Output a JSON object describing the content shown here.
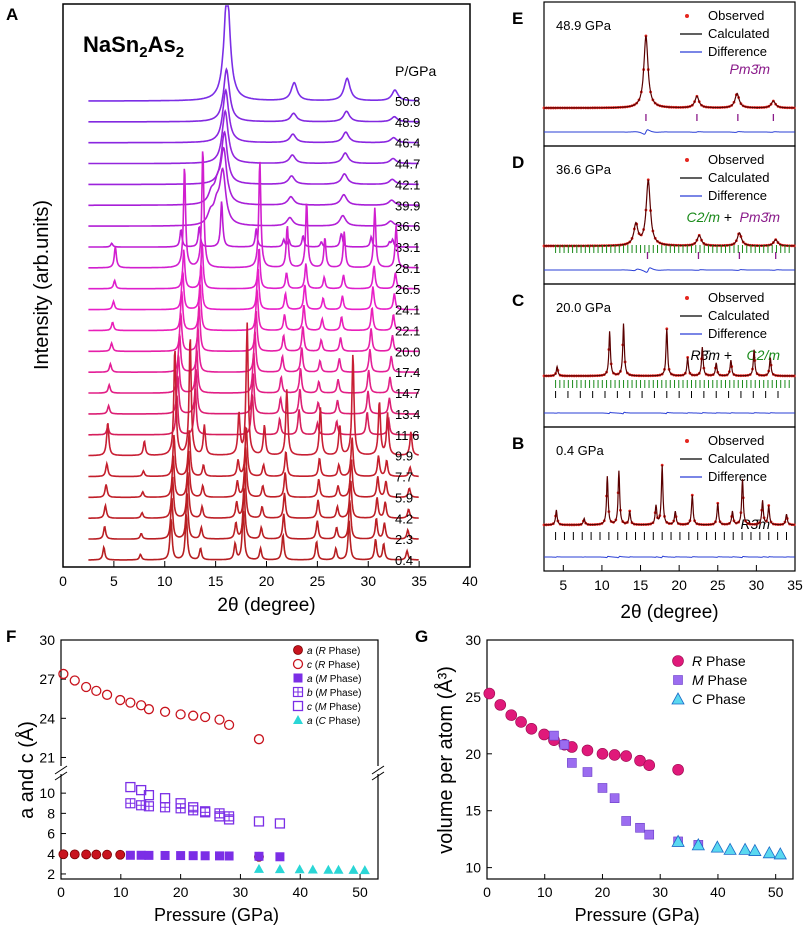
{
  "chart_data": [
    {
      "panel": "A",
      "type": "line",
      "title": "NaSn2As2",
      "xlabel": "2θ (degree)",
      "ylabel": "Intensity (arb.units)",
      "xlim": [
        0,
        40
      ],
      "xticks": [
        0,
        5,
        10,
        15,
        20,
        25,
        30,
        35,
        40
      ],
      "x_range": [
        2.5,
        35
      ],
      "legend_title": "P/GPa",
      "pressures": [
        "50.8",
        "48.9",
        "46.4",
        "44.7",
        "42.1",
        "39.9",
        "36.6",
        "33.1",
        "28.1",
        "26.5",
        "24.1",
        "22.1",
        "20.0",
        "17.4",
        "14.7",
        "13.4",
        "11.6",
        "9.9",
        "7.7",
        "5.9",
        "4.2",
        "2.3",
        "0.4"
      ],
      "colors": [
        "#7b2ee6",
        "#8229e0",
        "#8a26e0",
        "#9326dd",
        "#9c22dc",
        "#a81fd8",
        "#b21fd6",
        "#be1cd4",
        "#d11fcf",
        "#de1fcc",
        "#e81fc8",
        "#e91fb9",
        "#e61fa8",
        "#e41f98",
        "#e21f86",
        "#dc1f74",
        "#d61f5c",
        "#c81f34",
        "#c41f2c",
        "#c01f28",
        "#bd1f26",
        "#ba1f24",
        "#b71f22"
      ],
      "phases": {
        "R": [
          [
            4.0,
            0.28
          ],
          [
            7.6,
            0.12
          ],
          [
            10.6,
            0.9
          ],
          [
            12.1,
            1.0
          ],
          [
            13.5,
            0.25
          ],
          [
            16.9,
            0.35
          ],
          [
            17.7,
            1.1
          ],
          [
            19.4,
            0.25
          ],
          [
            21.6,
            0.55
          ],
          [
            24.9,
            0.4
          ],
          [
            26.8,
            0.25
          ],
          [
            28.1,
            0.85
          ],
          [
            30.7,
            0.45
          ],
          [
            31.5,
            0.35
          ],
          [
            33.8,
            0.2
          ]
        ],
        "M": [
          [
            4.4,
            0.18
          ],
          [
            11.2,
            0.85
          ],
          [
            13.0,
            1.0
          ],
          [
            18.6,
            0.9
          ],
          [
            21.3,
            0.35
          ],
          [
            23.2,
            0.55
          ],
          [
            25.0,
            0.25
          ],
          [
            26.9,
            0.3
          ],
          [
            29.9,
            0.5
          ],
          [
            32.0,
            0.35
          ]
        ],
        "C": [
          [
            15.8,
            1.25
          ],
          [
            22.4,
            0.2
          ],
          [
            27.6,
            0.25
          ],
          [
            32.3,
            0.12
          ]
        ]
      }
    },
    {
      "panel": "E",
      "type": "line",
      "label": "48.9 GPa",
      "legend": [
        "Observed",
        "Calculated",
        "Difference"
      ],
      "phase_label": "Pm3̄m",
      "ticks": {
        "purple": [
          15.7,
          22.3,
          27.6,
          32.2
        ]
      }
    },
    {
      "panel": "D",
      "type": "line",
      "label": "36.6 GPa",
      "legend": [
        "Observed",
        "Calculated",
        "Difference"
      ],
      "phase_labels": [
        "C2/m",
        "+",
        "Pm3̄m"
      ],
      "ticks": {
        "purple": [
          15.9,
          22.5,
          27.8,
          32.5
        ]
      }
    },
    {
      "panel": "C",
      "type": "line",
      "label": "20.0 GPa",
      "legend": [
        "Observed",
        "Calculated",
        "Difference"
      ],
      "phase_labels": [
        "R3̄m",
        "+",
        "C2/m"
      ]
    },
    {
      "panel": "B",
      "type": "line",
      "label": "0.4 GPa",
      "legend": [
        "Observed",
        "Calculated",
        "Difference"
      ],
      "phase_label": "R3̄m",
      "xlabel": "2θ (degree)",
      "xticks": [
        5,
        10,
        15,
        20,
        25,
        30,
        35
      ],
      "xlim": [
        2.5,
        35
      ]
    },
    {
      "panel": "F",
      "type": "scatter",
      "xlabel": "Pressure (GPa)",
      "ylabel": "a and c (Å)",
      "xlim": [
        0,
        53
      ],
      "xticks": [
        0,
        10,
        20,
        30,
        40,
        50
      ],
      "upper_yticks": [
        21,
        24,
        27,
        30
      ],
      "lower_yticks": [
        2,
        4,
        6,
        8,
        10
      ],
      "legend": [
        "a (R Phase)",
        "c (R Phase)",
        "a (M Phase)",
        "b (M Phase)",
        "c (M Phase)",
        "a (C Phase)"
      ],
      "series": [
        {
          "name": "a (R Phase)",
          "x": [
            0.4,
            2.3,
            4.2,
            5.9,
            7.7,
            9.9,
            33.1
          ],
          "y": [
            3.95,
            3.94,
            3.93,
            3.92,
            3.91,
            3.9,
            3.7
          ]
        },
        {
          "name": "c (R Phase)",
          "x": [
            0.4,
            2.3,
            4.2,
            5.9,
            7.7,
            9.9,
            11.6,
            13.4,
            14.7,
            17.4,
            20.0,
            22.1,
            24.1,
            26.5,
            28.1,
            33.1
          ],
          "y": [
            27.4,
            26.9,
            26.4,
            26.1,
            25.8,
            25.4,
            25.2,
            25.0,
            24.7,
            24.5,
            24.3,
            24.2,
            24.1,
            23.9,
            23.5,
            22.4
          ]
        },
        {
          "name": "a (M Phase)",
          "x": [
            11.6,
            13.4,
            14.7,
            17.4,
            20.0,
            22.1,
            24.1,
            26.5,
            28.1,
            33.1,
            36.6
          ],
          "y": [
            3.85,
            3.85,
            3.84,
            3.83,
            3.82,
            3.81,
            3.8,
            3.79,
            3.78,
            3.75,
            3.7
          ]
        },
        {
          "name": "b (M Phase)",
          "x": [
            11.6,
            13.4,
            14.7,
            17.4,
            20.0,
            22.1,
            24.1,
            26.5,
            28.1
          ],
          "y": [
            9.0,
            8.8,
            8.7,
            8.6,
            8.5,
            8.3,
            8.1,
            8.0,
            7.7
          ]
        },
        {
          "name": "c (M Phase)",
          "x": [
            11.6,
            13.4,
            14.7,
            17.4,
            20.0,
            22.1,
            24.1,
            26.5,
            28.1,
            33.1,
            36.6
          ],
          "y": [
            10.6,
            10.3,
            9.8,
            9.5,
            9.0,
            8.6,
            8.2,
            7.7,
            7.4,
            7.2,
            7.0
          ]
        },
        {
          "name": "a (C Phase)",
          "x": [
            33.1,
            36.6,
            39.9,
            42.1,
            44.7,
            46.4,
            48.9,
            50.8
          ],
          "y": [
            2.5,
            2.48,
            2.46,
            2.44,
            2.42,
            2.41,
            2.4,
            2.38
          ]
        }
      ]
    },
    {
      "panel": "G",
      "type": "scatter",
      "xlabel": "Pressure (GPa)",
      "ylabel": "volume per atom (Å³)",
      "xlim": [
        0,
        53
      ],
      "ylim": [
        9,
        30
      ],
      "xticks": [
        0,
        10,
        20,
        30,
        40,
        50
      ],
      "yticks": [
        10,
        15,
        20,
        25,
        30
      ],
      "legend": [
        "R Phase",
        "M Phase",
        "C Phase"
      ],
      "series": [
        {
          "name": "R Phase",
          "x": [
            0.4,
            2.3,
            4.2,
            5.9,
            7.7,
            9.9,
            11.6,
            13.4,
            14.7,
            17.4,
            20.0,
            22.1,
            24.1,
            26.5,
            28.1,
            33.1
          ],
          "y": [
            25.3,
            24.3,
            23.4,
            22.8,
            22.2,
            21.7,
            21.2,
            20.8,
            20.6,
            20.3,
            20.0,
            19.9,
            19.8,
            19.4,
            19.0,
            18.6
          ]
        },
        {
          "name": "M Phase",
          "x": [
            11.6,
            13.4,
            14.7,
            17.4,
            20.0,
            22.1,
            24.1,
            26.5,
            28.1,
            33.1,
            36.6
          ],
          "y": [
            21.6,
            20.8,
            19.2,
            18.4,
            17.0,
            16.1,
            14.1,
            13.5,
            12.9,
            12.3,
            12.0
          ]
        },
        {
          "name": "C Phase",
          "x": [
            33.1,
            36.6,
            39.9,
            42.1,
            44.7,
            46.4,
            48.9,
            50.8
          ],
          "y": [
            12.3,
            12.0,
            11.8,
            11.6,
            11.6,
            11.5,
            11.3,
            11.2
          ]
        }
      ]
    }
  ],
  "panel_letters": [
    "A",
    "E",
    "D",
    "C",
    "B",
    "F",
    "G"
  ]
}
